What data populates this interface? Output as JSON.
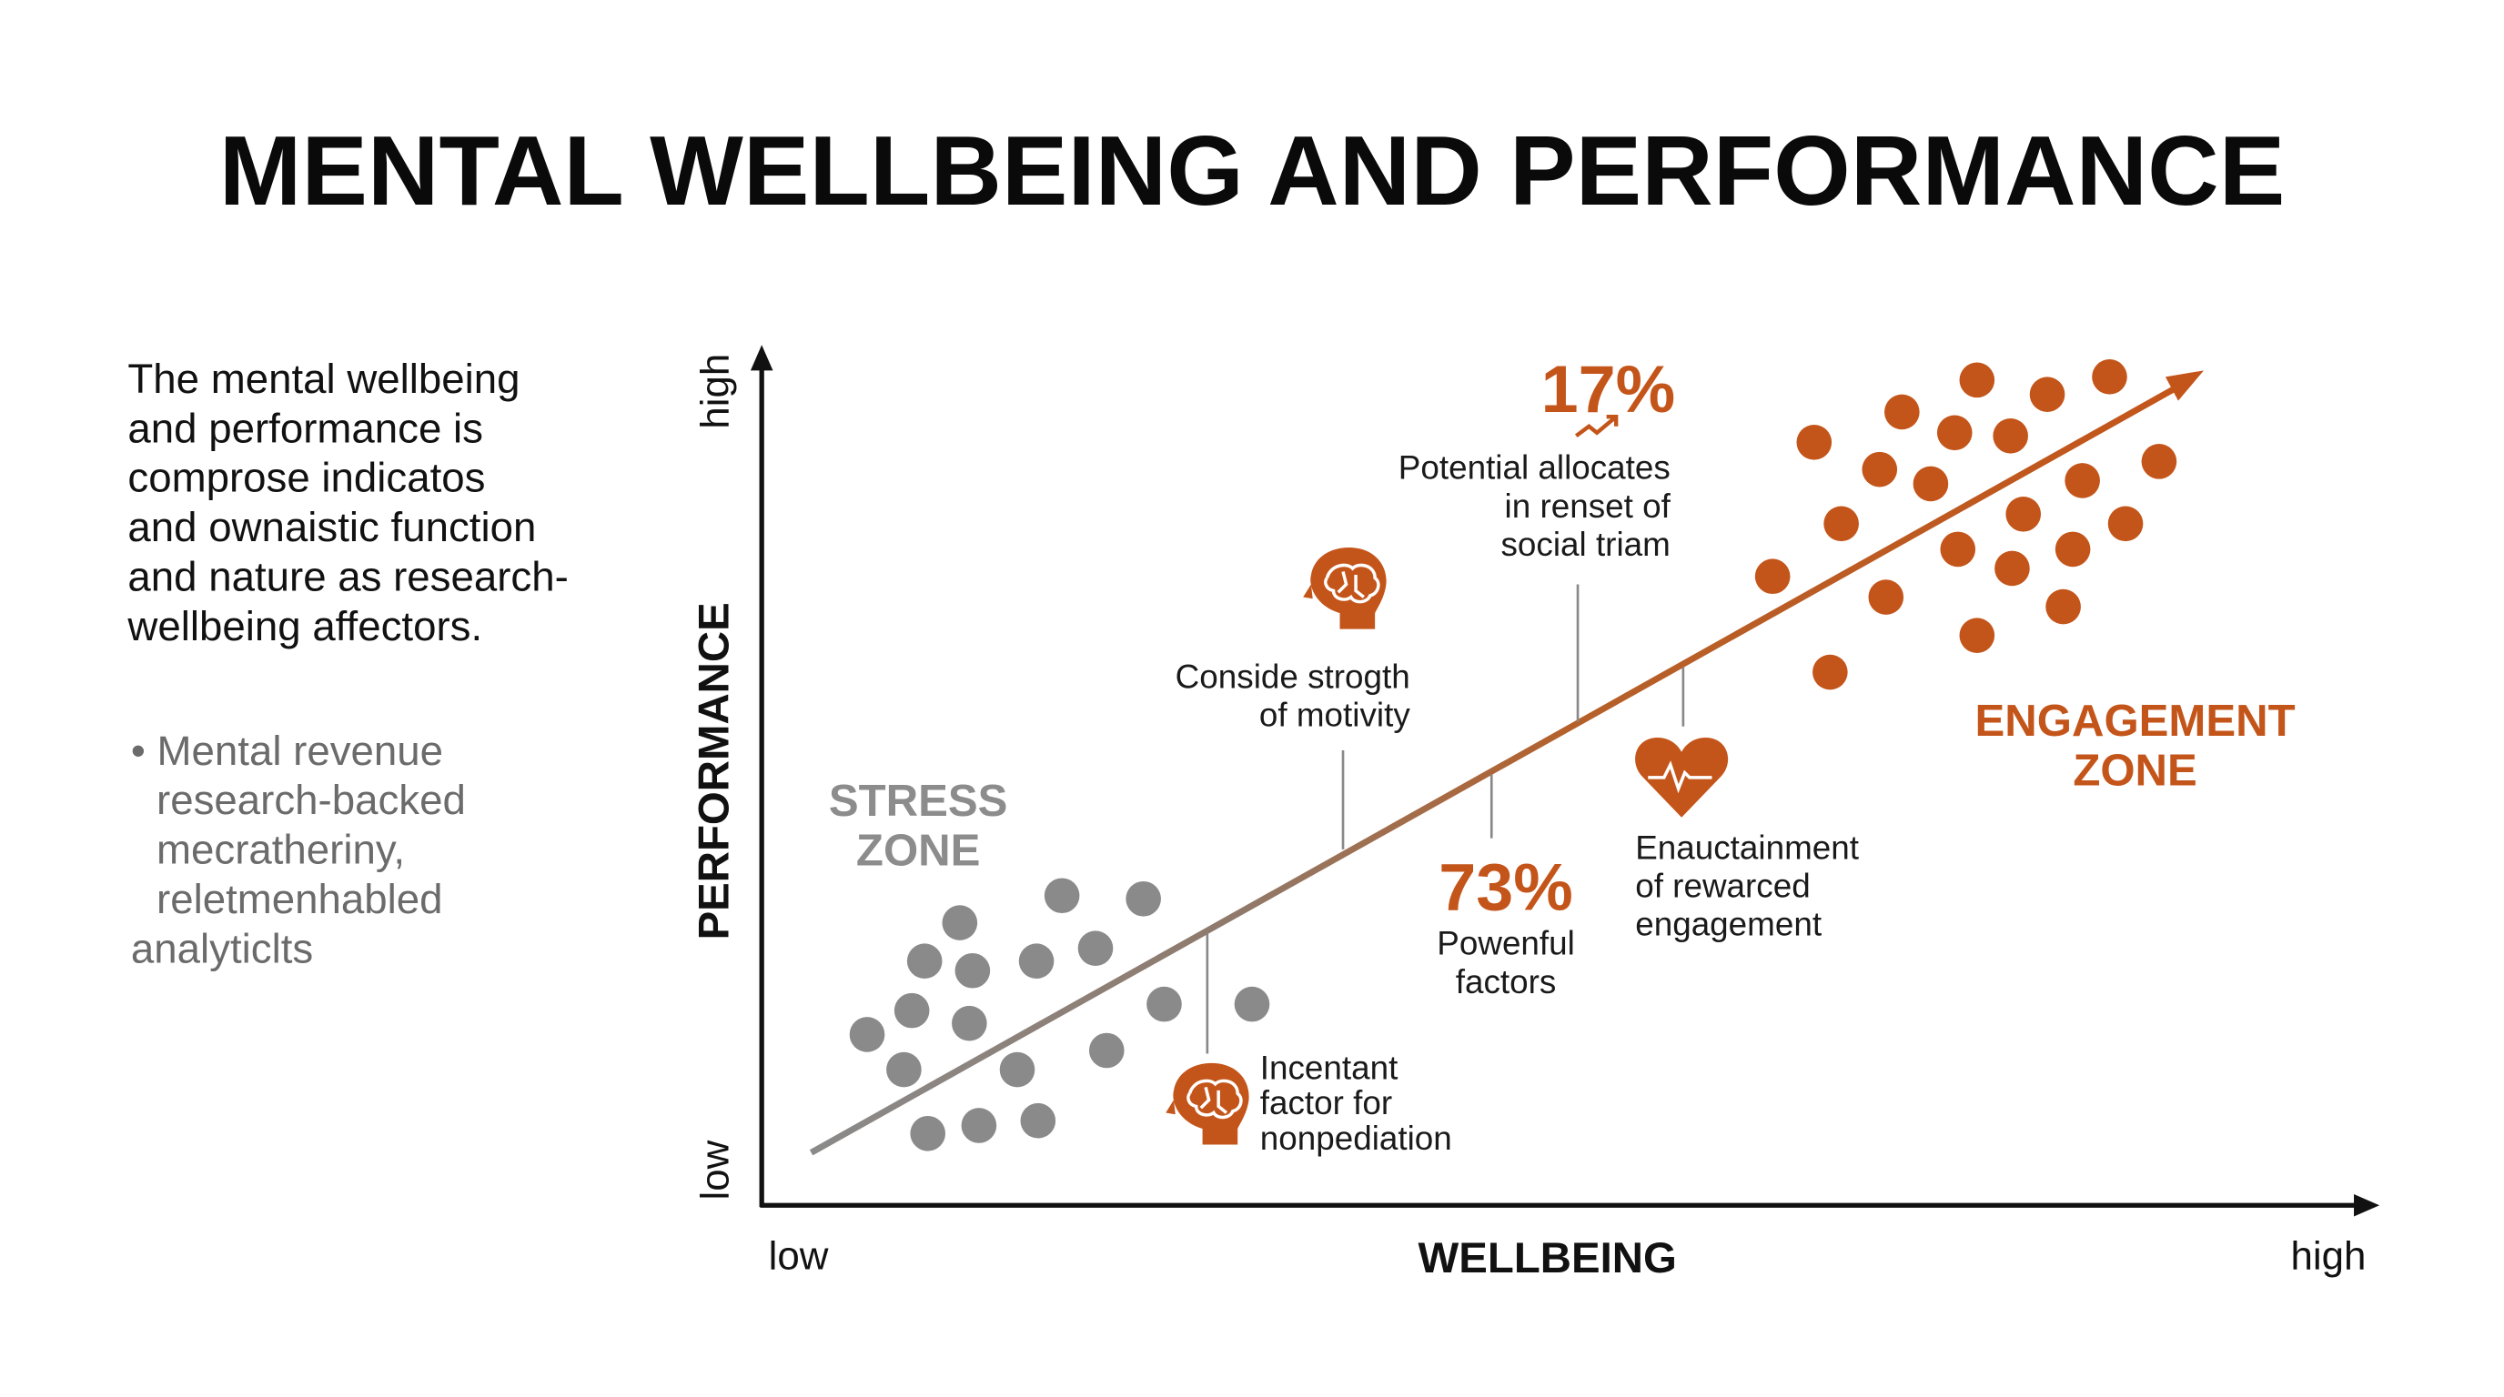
{
  "header": {
    "title": "MENTAL WELLBEING AND PERFORMANCE"
  },
  "intro": {
    "lines": [
      "The mental wellbeing",
      "and performance is",
      "comprose indicatos",
      "and ownaistic function",
      "and nature as research-",
      "wellbeing affectors."
    ]
  },
  "bullet": {
    "lines": [
      "• Mental revenue",
      "research-backed",
      "mecratheriny,",
      "reletmenhabled",
      "analyticlts"
    ]
  },
  "diagram": {
    "y_axis": {
      "label": "PERFORMANCE",
      "low": "low",
      "high": "high"
    },
    "x_axis": {
      "label": "WELLBEING",
      "low": "low",
      "high": "high"
    },
    "zones": [
      {
        "lines": [
          "STRESS",
          "ZONE"
        ]
      },
      {
        "lines": [
          "ENGAGEMENT",
          "ZONE"
        ]
      }
    ],
    "annotations": [
      {
        "stat": "17%",
        "lines": [
          "Potential allocates",
          "in renset of",
          "social triam"
        ]
      },
      {
        "lines": [
          "Conside strogth",
          "of motivity"
        ]
      },
      {
        "stat": "73%",
        "lines": [
          "Powenful",
          "factors"
        ]
      },
      {
        "lines": [
          "Enauctainment",
          "of rewarced",
          "engagement"
        ]
      },
      {
        "lines": [
          "Incentant",
          "factor for",
          "nonpediation"
        ]
      }
    ]
  }
}
